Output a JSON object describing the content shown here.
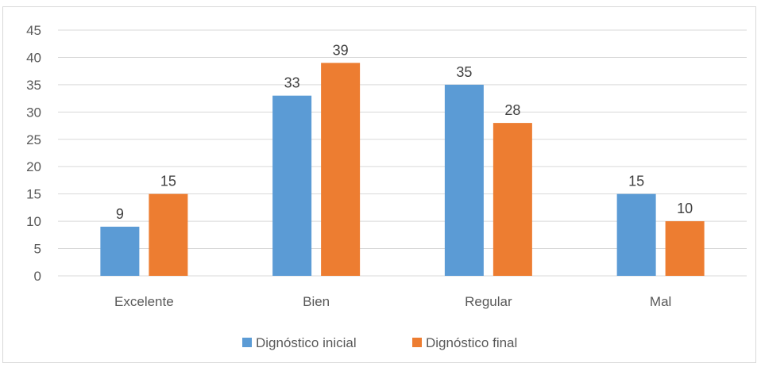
{
  "chart_data": {
    "type": "bar",
    "categories": [
      "Excelente",
      "Bien",
      "Regular",
      "Mal"
    ],
    "series": [
      {
        "name": "Dignóstico inicial",
        "values": [
          9,
          33,
          35,
          15
        ],
        "color": "#5b9bd5"
      },
      {
        "name": "Dignóstico final",
        "values": [
          15,
          39,
          28,
          10
        ],
        "color": "#ed7d31"
      }
    ],
    "ylim": [
      0,
      45
    ],
    "yticks": [
      "0",
      "5",
      "10",
      "15",
      "20",
      "25",
      "30",
      "35",
      "40",
      "45"
    ],
    "grid": true,
    "legend_position": "bottom",
    "gridline_color": "#d9d9d9"
  }
}
